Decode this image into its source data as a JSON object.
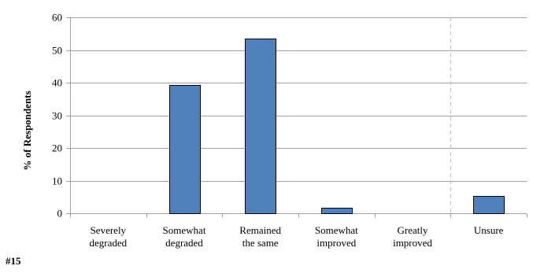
{
  "chart_data": {
    "type": "bar",
    "categories": [
      [
        "Severely",
        "degraded"
      ],
      [
        "Somewhat",
        "degraded"
      ],
      [
        "Remained",
        "the same"
      ],
      [
        "Somewhat",
        "improved"
      ],
      [
        "Greatly",
        "improved"
      ],
      [
        "Unsure"
      ]
    ],
    "values": [
      0,
      39.3,
      53.6,
      1.8,
      0,
      5.4
    ],
    "ylabel": "% of Respondents",
    "xlabel": "",
    "ylim": [
      0,
      60
    ],
    "yticks": [
      0,
      10,
      20,
      30,
      40,
      50,
      60
    ],
    "grid": true,
    "legend": "none",
    "separator_before_category": 5,
    "bar_color": "#4f81bd",
    "bar_edge_color": "#000000",
    "grid_color": "#a0a0a0",
    "separator_color": "#c0c0c0"
  },
  "annotation": {
    "label": "#15"
  }
}
